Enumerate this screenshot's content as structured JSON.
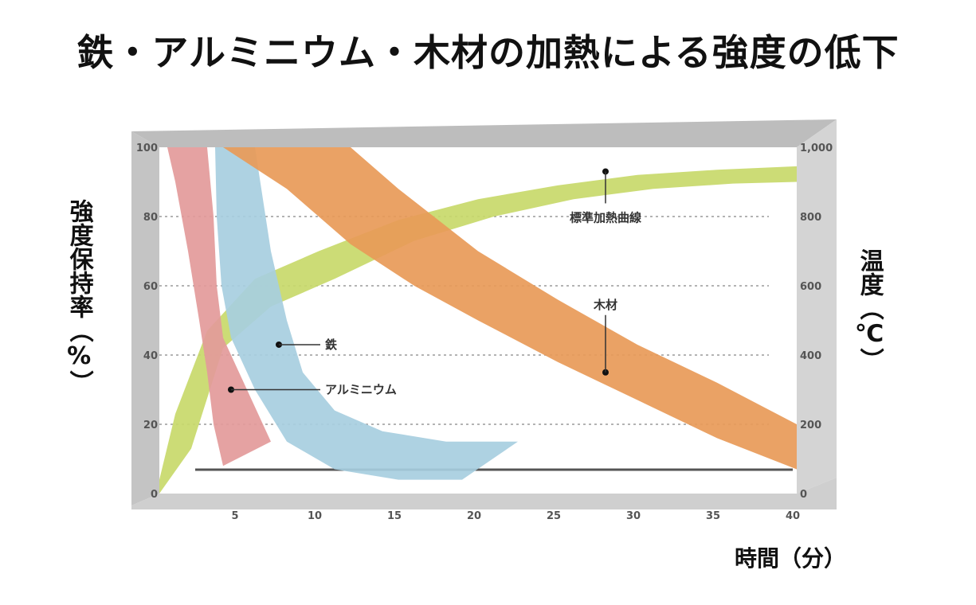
{
  "chart_data": {
    "type": "area",
    "title": "鉄・アルミニウム・木材の加熱による強度の低下",
    "xlabel": "時間（分）",
    "ylabel": "強度保持率（%）",
    "ylabel_right": "温度（℃）",
    "xlim": [
      0,
      40
    ],
    "ylim": [
      0,
      100
    ],
    "ylim_right": [
      0,
      1000
    ],
    "x_ticks": [
      5,
      10,
      15,
      20,
      25,
      30,
      35,
      40
    ],
    "y_ticks": [
      0,
      20,
      40,
      60,
      80,
      100
    ],
    "y_tick_labels": [
      "0",
      "20",
      "40",
      "60",
      "80",
      "100"
    ],
    "y_right_ticks": [
      0,
      200,
      400,
      600,
      800,
      1000
    ],
    "y_right_tick_labels": [
      "0",
      "200",
      "400",
      "600",
      "800",
      "1,000"
    ],
    "grid": true,
    "series": [
      {
        "name": "標準加熱曲線",
        "axis": "right",
        "color": "#c8d96a",
        "upper": [
          [
            0,
            40
          ],
          [
            1,
            230
          ],
          [
            3,
            470
          ],
          [
            6,
            620
          ],
          [
            10,
            700
          ],
          [
            15,
            790
          ],
          [
            20,
            850
          ],
          [
            25,
            890
          ],
          [
            30,
            920
          ],
          [
            35,
            935
          ],
          [
            40,
            945
          ]
        ],
        "lower": [
          [
            0,
            0
          ],
          [
            2,
            130
          ],
          [
            4,
            420
          ],
          [
            7,
            540
          ],
          [
            11,
            620
          ],
          [
            16,
            730
          ],
          [
            21,
            800
          ],
          [
            26,
            850
          ],
          [
            31,
            880
          ],
          [
            36,
            895
          ],
          [
            40,
            900
          ]
        ]
      },
      {
        "name": "アルミニウム",
        "axis": "left",
        "color": "#e39a9a",
        "upper": [
          [
            0.5,
            100
          ],
          [
            3,
            100
          ],
          [
            3.4,
            80
          ],
          [
            3.6,
            60
          ],
          [
            4,
            45
          ],
          [
            5.5,
            30
          ],
          [
            7,
            15
          ]
        ],
        "lower": [
          [
            0.5,
            100
          ],
          [
            1,
            90
          ],
          [
            1.8,
            70
          ],
          [
            2.5,
            50
          ],
          [
            3,
            35
          ],
          [
            3.4,
            20
          ],
          [
            4,
            8
          ]
        ]
      },
      {
        "name": "鉄",
        "axis": "left",
        "color": "#a7cedf",
        "upper": [
          [
            3.5,
            100
          ],
          [
            6,
            100
          ],
          [
            6.5,
            85
          ],
          [
            7,
            70
          ],
          [
            8,
            50
          ],
          [
            9,
            35
          ],
          [
            11,
            24
          ],
          [
            14,
            18
          ],
          [
            18,
            15
          ],
          [
            22.5,
            15
          ]
        ],
        "lower": [
          [
            3.5,
            100
          ],
          [
            3.6,
            80
          ],
          [
            3.9,
            60
          ],
          [
            4.5,
            45
          ],
          [
            6,
            30
          ],
          [
            8,
            15
          ],
          [
            11,
            7
          ],
          [
            15,
            4
          ],
          [
            19,
            4
          ],
          [
            22.5,
            15
          ]
        ]
      },
      {
        "name": "木材",
        "axis": "left",
        "color": "#e89a58",
        "upper": [
          [
            6,
            100
          ],
          [
            12,
            100
          ],
          [
            15,
            88
          ],
          [
            20,
            70
          ],
          [
            25,
            56
          ],
          [
            30,
            43
          ],
          [
            35,
            32
          ],
          [
            40,
            20
          ]
        ],
        "lower": [
          [
            4,
            100
          ],
          [
            8,
            88
          ],
          [
            12,
            72
          ],
          [
            16,
            60
          ],
          [
            20,
            50
          ],
          [
            25,
            38
          ],
          [
            30,
            27
          ],
          [
            35,
            16
          ],
          [
            40,
            7
          ]
        ]
      }
    ],
    "annotations": [
      {
        "text": "標準加熱曲線",
        "point": [
          28,
          930
        ],
        "axis": "right"
      },
      {
        "text": "木材",
        "point": [
          28,
          35
        ],
        "axis": "left"
      },
      {
        "text": "鉄",
        "point": [
          7.5,
          43
        ],
        "axis": "left"
      },
      {
        "text": "アルミニウム",
        "point": [
          4.5,
          30
        ],
        "axis": "left"
      }
    ]
  }
}
